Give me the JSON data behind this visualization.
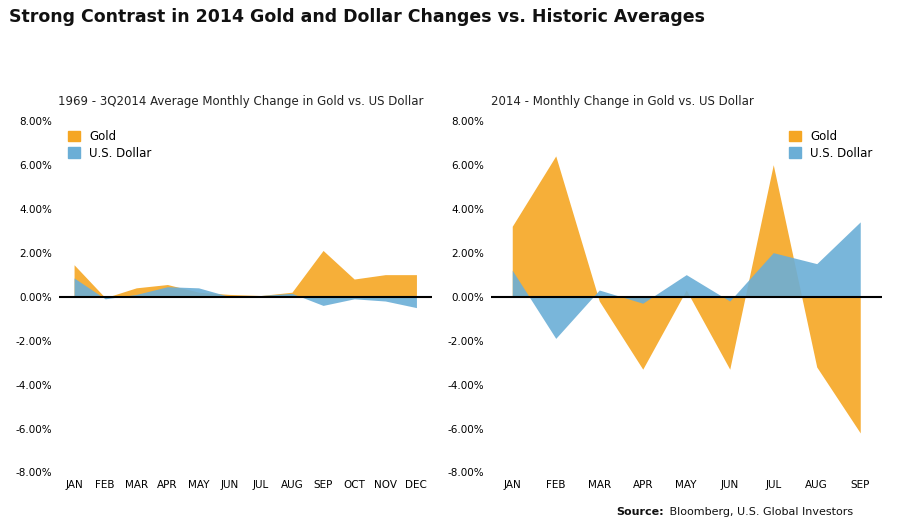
{
  "title": "Strong Contrast in 2014 Gold and Dollar Changes vs. Historic Averages",
  "title_fontsize": 12.5,
  "subtitle_left": "1969 - 3Q2014 Average Monthly Change in Gold vs. US Dollar",
  "subtitle_right": "2014 - Monthly Change in Gold vs. US Dollar",
  "subtitle_fontsize": 8.5,
  "source_label": "Source:",
  "source_text": " Bloomberg, U.S. Global Investors",
  "gold_color": "#F5A623",
  "dollar_color": "#6BAED6",
  "ylim": [
    -8.0,
    8.0
  ],
  "yticks": [
    -8.0,
    -6.0,
    -4.0,
    -2.0,
    0.0,
    2.0,
    4.0,
    6.0,
    8.0
  ],
  "left_months": [
    "JAN",
    "FEB",
    "MAR",
    "APR",
    "MAY",
    "JUN",
    "JUL",
    "AUG",
    "SEP",
    "OCT",
    "NOV",
    "DEC"
  ],
  "right_months": [
    "JAN",
    "FEB",
    "MAR",
    "APR",
    "MAY",
    "JUN",
    "JUL",
    "AUG",
    "SEP"
  ],
  "left_gold": [
    1.45,
    -0.05,
    0.4,
    0.55,
    0.2,
    0.1,
    0.05,
    0.2,
    2.1,
    0.8,
    1.0,
    1.0
  ],
  "left_dollar": [
    0.85,
    -0.1,
    0.1,
    0.45,
    0.4,
    0.0,
    0.05,
    0.15,
    -0.4,
    -0.1,
    -0.2,
    -0.5
  ],
  "right_gold": [
    3.2,
    6.4,
    -0.2,
    -3.3,
    0.3,
    -3.3,
    6.0,
    -3.2,
    -6.2
  ],
  "right_dollar": [
    1.2,
    -1.9,
    0.3,
    -0.3,
    1.0,
    -0.2,
    2.0,
    1.5,
    3.4
  ],
  "background_color": "#FFFFFF"
}
